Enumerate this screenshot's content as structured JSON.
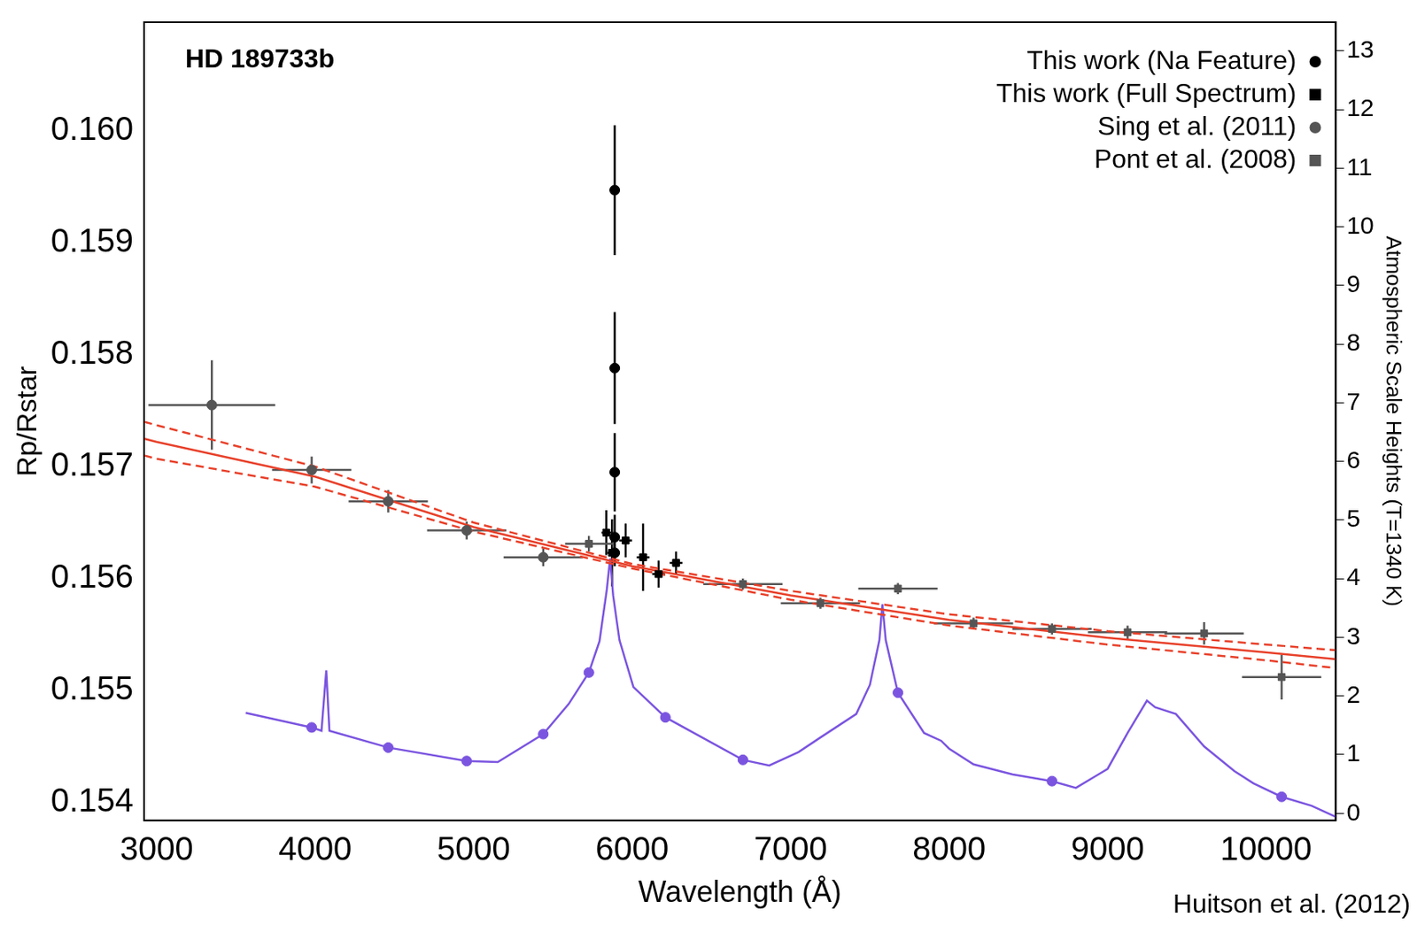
{
  "chart_data": {
    "type": "scatter",
    "title": "HD 189733b",
    "annotations": [
      "Huitson et al. (2012)"
    ],
    "x_label": "Wavelength (Å)",
    "y_label": "Rp/Rstar",
    "y2_label": "Atmospheric Scale Heights (T=1340 K)",
    "xlim": [
      2920,
      10440
    ],
    "xticks": [
      3000,
      4000,
      5000,
      6000,
      7000,
      8000,
      9000,
      10000
    ],
    "ylim": [
      0.15384,
      0.16097
    ],
    "yticks": [
      0.154,
      0.155,
      0.156,
      0.157,
      0.158,
      0.159,
      {
        "value": 0.16,
        "label": "0.160"
      }
    ],
    "y2lim": [
      -0.12,
      13.49
    ],
    "y2ticks": [
      0,
      1,
      2,
      3,
      4,
      5,
      6,
      7,
      8,
      9,
      10,
      11,
      12,
      13
    ],
    "grid": false,
    "legend": "upper right",
    "series": [
      {
        "name": "This work (Na Feature)",
        "type": "scatter",
        "color": "#000000",
        "marker": "circle",
        "x": [
          5890,
          5890,
          5890,
          5890,
          5890
        ],
        "values": [
          0.15947,
          0.15788,
          0.15695,
          0.15637,
          0.15623
        ],
        "yerr": [
          0.00058,
          0.0005,
          0.00035,
          0.0002,
          0.00012
        ]
      },
      {
        "name": "This work (Full Spectrum)",
        "type": "scatter",
        "color": "#000000",
        "marker": "square",
        "x": [
          5837,
          5873,
          5959,
          6069,
          6167,
          6277
        ],
        "values": [
          0.15641,
          0.15623,
          0.15634,
          0.15619,
          0.15604,
          0.15614
        ],
        "xerr": [
          30,
          30,
          40,
          40,
          40,
          40
        ],
        "yerr": [
          0.0002,
          0.0003,
          0.00015,
          0.0003,
          0.00012,
          0.0001
        ]
      },
      {
        "name": "Sing et al. (2011)",
        "type": "scatter",
        "color": "#555555",
        "marker": "circle",
        "x": [
          3348,
          3978,
          4461,
          4956,
          5439
        ],
        "values": [
          0.15755,
          0.15697,
          0.15669,
          0.15643,
          0.15619
        ],
        "xerr": [
          400,
          250,
          250,
          250,
          250
        ],
        "yerr": [
          0.0004,
          0.00012,
          0.0001,
          8e-05,
          8e-05
        ]
      },
      {
        "name": "Pont et al. (2008)",
        "type": "scatter",
        "color": "#555555",
        "marker": "square",
        "x": [
          5727,
          6699,
          7188,
          7677,
          8154,
          8649,
          9126,
          9609,
          10098
        ],
        "values": [
          0.15631,
          0.15595,
          0.15578,
          0.15591,
          0.1556,
          0.15555,
          0.15552,
          0.15551,
          0.15512
        ],
        "xerr": [
          150,
          250,
          250,
          250,
          250,
          250,
          250,
          250,
          250
        ],
        "yerr": [
          7e-05,
          5e-05,
          5e-05,
          5e-05,
          5e-05,
          5e-05,
          6e-05,
          0.0001,
          0.0002
        ]
      },
      {
        "type": "line",
        "color": "#e8402a",
        "line_style": "solid",
        "x": [
          2920,
          3000,
          4000,
          5000,
          6000,
          7000,
          8000,
          9000,
          10000,
          10440
        ],
        "values": [
          0.15725,
          0.15722,
          0.15691,
          0.15646,
          0.15611,
          0.15585,
          0.15563,
          0.15547,
          0.15534,
          0.15528
        ]
      },
      {
        "type": "line",
        "color": "#e8402a",
        "line_style": "dashed",
        "x": [
          2920,
          3000,
          4000,
          5000,
          6000,
          7000,
          8000,
          9000,
          10000,
          10440
        ],
        "values": [
          0.1574,
          0.15737,
          0.157,
          0.1565,
          0.15613,
          0.15589,
          0.15568,
          0.15553,
          0.15541,
          0.15536
        ]
      },
      {
        "type": "line",
        "color": "#e8402a",
        "line_style": "dashed",
        "x": [
          2920,
          3000,
          4000,
          5000,
          6000,
          7000,
          8000,
          9000,
          10000,
          10440
        ],
        "values": [
          0.1571,
          0.15707,
          0.15682,
          0.15642,
          0.15609,
          0.15581,
          0.15558,
          0.15541,
          0.15527,
          0.1552
        ]
      },
      {
        "type": "line",
        "color": "#7b55e0",
        "line_style": "solid",
        "x": [
          3562,
          3978,
          4040,
          4070,
          4090,
          4461,
          4956,
          5152,
          5439,
          5600,
          5727,
          5794,
          5840,
          5861,
          5880,
          5920,
          6008,
          6210,
          6699,
          6865,
          7050,
          7188,
          7414,
          7500,
          7560,
          7579,
          7600,
          7677,
          7842,
          7950,
          8000,
          8154,
          8400,
          8649,
          8800,
          8942,
          9000,
          9126,
          9248,
          9300,
          9431,
          9609,
          9800,
          9920,
          10098,
          10287,
          10440
        ],
        "values": [
          0.1548,
          0.15467,
          0.15464,
          0.15518,
          0.15464,
          0.15449,
          0.15437,
          0.15436,
          0.15461,
          0.15488,
          0.15516,
          0.15544,
          0.1559,
          0.15618,
          0.15585,
          0.15545,
          0.15503,
          0.15476,
          0.15438,
          0.15433,
          0.15445,
          0.15458,
          0.15479,
          0.15505,
          0.15545,
          0.15577,
          0.15545,
          0.15498,
          0.15462,
          0.15455,
          0.15448,
          0.15434,
          0.15425,
          0.15419,
          0.15413,
          0.15425,
          0.1543,
          0.15462,
          0.15491,
          0.15485,
          0.15479,
          0.1545,
          0.15428,
          0.15417,
          0.15405,
          0.15397,
          0.15387
        ]
      },
      {
        "type": "scatter",
        "color": "#7b55e0",
        "marker": "circle",
        "x": [
          3978,
          4461,
          4956,
          5439,
          5727,
          6210,
          6699,
          7677,
          8649,
          10098
        ],
        "values": [
          0.15467,
          0.15449,
          0.15437,
          0.15461,
          0.15516,
          0.15476,
          0.15438,
          0.15498,
          0.15419,
          0.15405
        ]
      }
    ]
  }
}
